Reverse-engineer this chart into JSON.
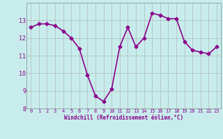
{
  "x": [
    0,
    1,
    2,
    3,
    4,
    5,
    6,
    7,
    8,
    9,
    10,
    11,
    12,
    13,
    14,
    15,
    16,
    17,
    18,
    19,
    20,
    21,
    22,
    23
  ],
  "y": [
    12.6,
    12.8,
    12.8,
    12.7,
    12.4,
    12.0,
    11.4,
    9.9,
    8.7,
    8.4,
    9.1,
    11.5,
    12.6,
    11.5,
    12.0,
    13.4,
    13.3,
    13.1,
    13.1,
    11.8,
    11.3,
    11.2,
    11.1,
    11.5
  ],
  "line_color": "#8B008B",
  "marker": "D",
  "marker_size": 2.5,
  "bg_color": "#c8ecec",
  "grid_color": "#aaaaaa",
  "xlabel": "Windchill (Refroidissement éolien,°C)",
  "xlabel_color": "#8B008B",
  "tick_color": "#8B008B",
  "ylim": [
    8,
    14
  ],
  "xlim": [
    -0.5,
    23.5
  ],
  "yticks": [
    8,
    9,
    10,
    11,
    12,
    13
  ],
  "xticks": [
    0,
    1,
    2,
    3,
    4,
    5,
    6,
    7,
    8,
    9,
    10,
    11,
    12,
    13,
    14,
    15,
    16,
    17,
    18,
    19,
    20,
    21,
    22,
    23
  ],
  "line_width": 1.2,
  "tick_fontsize": 5.0,
  "ytick_fontsize": 6.0,
  "xlabel_fontsize": 5.5
}
